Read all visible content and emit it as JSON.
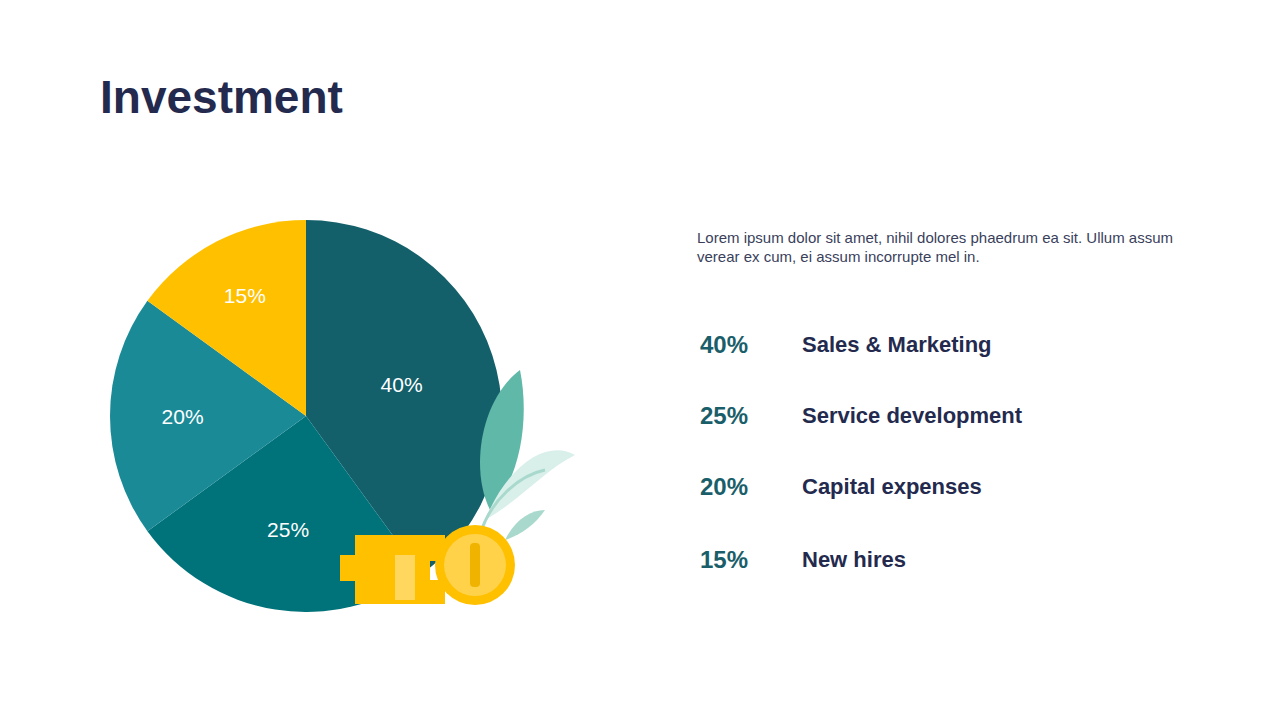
{
  "chart_data": {
    "type": "pie",
    "title": "Investment",
    "subtitle": "Lorem ipsum dolor sit amet, nihil dolores phaedrum ea sit. Ullum assum verear ex cum, ei assum incorrupte mel in.",
    "categories": [
      "Sales & Marketing",
      "Service development",
      "Capital expenses",
      "New hires"
    ],
    "values": [
      40,
      25,
      20,
      15
    ],
    "value_labels": [
      "40%",
      "25%",
      "20%",
      "15%"
    ],
    "colors": [
      "#13606b",
      "#00727a",
      "#1a8a96",
      "#ffc000"
    ],
    "data_labels": true
  }
}
